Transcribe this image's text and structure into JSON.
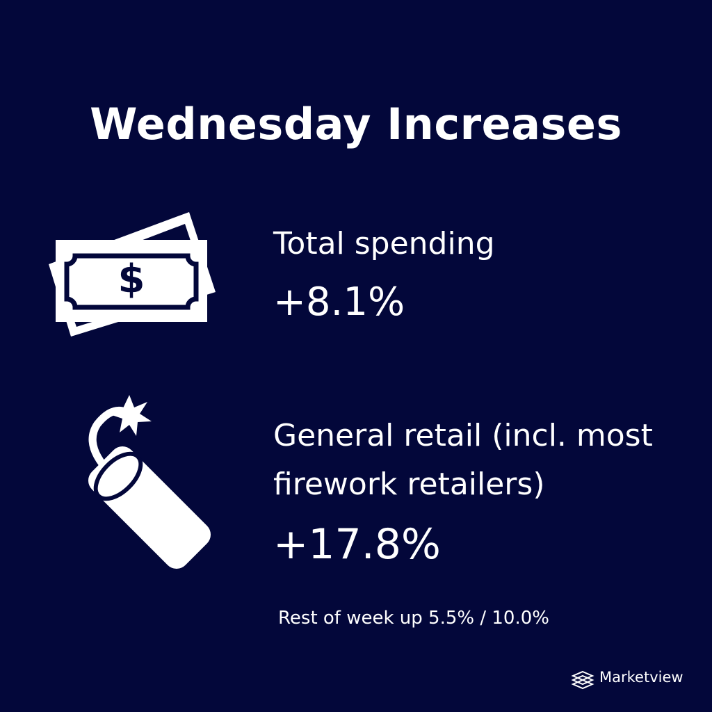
{
  "header": {
    "title": "Wednesday Increases"
  },
  "items": [
    {
      "label": "Total spending",
      "value": "+8.1%"
    },
    {
      "label": "General retail (incl. most firework retailers)",
      "value": "+17.8%"
    }
  ],
  "footnote": "Rest of week up 5.5% / 10.0%",
  "brand": "Marketview"
}
